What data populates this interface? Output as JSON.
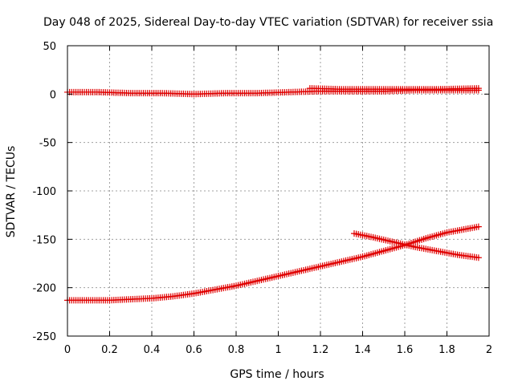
{
  "chart_data": {
    "type": "scatter",
    "title": "Day 048 of 2025, Sidereal Day-to-day VTEC variation (SDTVAR) for receiver ssia",
    "xlabel": "GPS time / hours",
    "ylabel": "SDTVAR / TECUs",
    "xlim": [
      0,
      2
    ],
    "ylim": [
      -250,
      50
    ],
    "xticks": [
      "0",
      "0.2",
      "0.4",
      "0.6",
      "0.8",
      "1",
      "1.2",
      "1.4",
      "1.6",
      "1.8",
      "2"
    ],
    "yticks": [
      "50",
      "0",
      "-50",
      "-100",
      "-150",
      "-200",
      "-250"
    ],
    "grid": true,
    "legend": "none",
    "marker": "plus",
    "colors": {
      "series": "#e00000",
      "grid": "#a0a0a0",
      "axis": "#000000"
    },
    "series": [
      {
        "x": [
          0.0,
          0.15,
          0.3,
          0.45,
          0.6,
          0.75,
          0.9,
          1.05,
          1.2,
          1.35,
          1.5,
          1.65,
          1.8,
          1.95
        ],
        "y": [
          2,
          2,
          1,
          1,
          0,
          1,
          1,
          2,
          3,
          3,
          3,
          4,
          4,
          4
        ]
      },
      {
        "x": [
          1.15,
          1.3,
          1.45,
          1.6,
          1.75,
          1.95
        ],
        "y": [
          6,
          5,
          5,
          5,
          5,
          6
        ]
      },
      {
        "x": [
          0.0,
          0.1,
          0.2,
          0.3,
          0.4,
          0.5,
          0.6,
          0.7,
          0.8,
          0.9,
          1.0,
          1.1,
          1.2,
          1.3,
          1.4,
          1.5,
          1.6,
          1.7,
          1.8,
          1.9,
          1.95
        ],
        "y": [
          -213,
          -213,
          -213,
          -212,
          -211,
          -209,
          -206,
          -202,
          -198,
          -193,
          -188,
          -183,
          -178,
          -173,
          -168,
          -162,
          -156,
          -149,
          -143,
          -139,
          -137
        ]
      },
      {
        "x": [
          1.36,
          1.45,
          1.55,
          1.65,
          1.75,
          1.85,
          1.95
        ],
        "y": [
          -144,
          -148,
          -153,
          -158,
          -162,
          -166,
          -169
        ]
      }
    ]
  }
}
